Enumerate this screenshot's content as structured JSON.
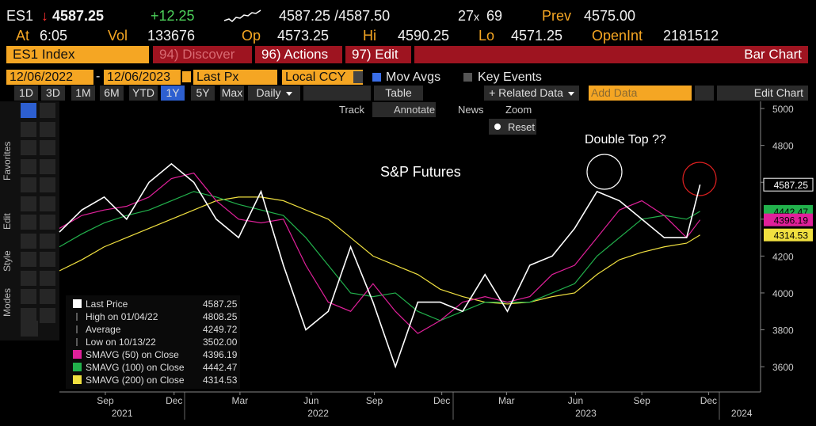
{
  "quote": {
    "ticker": "ES1",
    "arrow": "↓",
    "last": "4587.25",
    "change": "+12.25",
    "bid_ask": "4587.25 /4587.50",
    "bid_size": "27",
    "size_sep": "x",
    "ask_size": "69",
    "prev_label": "Prev",
    "prev": "4575.00",
    "time_label": "At",
    "time": "6:05",
    "vol_label": "Vol",
    "vol": "133676",
    "open_label": "Op",
    "open": "4573.25",
    "high_label": "Hi",
    "high": "4590.25",
    "low_label": "Lo",
    "low": "4571.25",
    "oi_label": "OpenInt",
    "oi": "2181512"
  },
  "menu": [
    "ES1 Index",
    "94) Discover",
    "96) Actions",
    "97) Edit",
    "Bar Chart"
  ],
  "controls": {
    "start": "12/06/2022",
    "dash": "-",
    "end": "12/06/2023",
    "field": "Last Px",
    "currency": "Local CCY",
    "mov_avgs": "Mov Avgs",
    "key_events": "Key Events"
  },
  "periods": [
    "1D",
    "3D",
    "1M",
    "6M",
    "YTD",
    "1Y",
    "5Y",
    "Max"
  ],
  "frequency": "Daily",
  "table": "Table",
  "related": "+ Related Data",
  "add_data": "Add Data",
  "edit_chart": "Edit Chart",
  "tools": [
    "Track",
    "Annotate",
    "News",
    "Zoom"
  ],
  "reset": "Reset",
  "side_tabs": [
    "Favorites",
    "Edit",
    "Style",
    "Modes"
  ],
  "chart_data": {
    "type": "line",
    "annotations": [
      "S&P Futures",
      "Double Top ??"
    ],
    "x": [
      0,
      1,
      2,
      3,
      4,
      5,
      6,
      7,
      8,
      9,
      10,
      11,
      12,
      13,
      14,
      15,
      16,
      17,
      18,
      19,
      20,
      21,
      22,
      23,
      24,
      25,
      26,
      27,
      28,
      28.6
    ],
    "xlim": [
      0,
      31.3
    ],
    "xticks": [
      {
        "value": 2.05,
        "label": "Sep"
      },
      {
        "value": 5.12,
        "label": "Dec"
      },
      {
        "value": 8.06,
        "label": "Mar"
      },
      {
        "value": 11.24,
        "label": "Jun"
      },
      {
        "value": 14.06,
        "label": "Sep"
      },
      {
        "value": 17.07,
        "label": "Dec"
      },
      {
        "value": 19.96,
        "label": "Mar"
      },
      {
        "value": 23.04,
        "label": "Jun"
      },
      {
        "value": 26.0,
        "label": "Sep"
      },
      {
        "value": 28.98,
        "label": "Dec"
      }
    ],
    "year_ticks": [
      {
        "value": 2.8,
        "label": "2021"
      },
      {
        "value": 11.55,
        "label": "2022"
      },
      {
        "value": 23.5,
        "label": "2023"
      },
      {
        "value": 30.46,
        "label": "2024"
      }
    ],
    "ylim": [
      3463,
      5039
    ],
    "yticks": [
      3600,
      3800,
      4000,
      4200,
      4400,
      4600,
      4800,
      5000
    ],
    "series": [
      {
        "name": "Last Price",
        "color": "#ffffff",
        "values": [
          4330,
          4450,
          4520,
          4400,
          4600,
          4700,
          4600,
          4400,
          4300,
          4550,
          4150,
          3800,
          3900,
          4250,
          3950,
          3600,
          3950,
          3950,
          3900,
          4100,
          3900,
          4150,
          4200,
          4350,
          4550,
          4500,
          4400,
          4300,
          4300,
          4587.25
        ]
      },
      {
        "name": "SMAVG (50)  on Close",
        "color": "#e0209a",
        "values": [
          4350,
          4420,
          4450,
          4470,
          4520,
          4620,
          4650,
          4500,
          4400,
          4380,
          4400,
          4150,
          3950,
          3900,
          4050,
          3900,
          3780,
          3850,
          3950,
          3980,
          3950,
          3980,
          4100,
          4150,
          4300,
          4450,
          4500,
          4420,
          4300,
          4396.19
        ]
      },
      {
        "name": "SMAVG (100)  on Close",
        "color": "#22b14c",
        "values": [
          4250,
          4320,
          4380,
          4420,
          4450,
          4500,
          4550,
          4520,
          4480,
          4450,
          4420,
          4300,
          4150,
          4000,
          3980,
          4000,
          3900,
          3850,
          3900,
          3950,
          3950,
          3950,
          4000,
          4050,
          4200,
          4300,
          4400,
          4420,
          4400,
          4442.47
        ]
      },
      {
        "name": "SMAVG (200)  on Close",
        "color": "#f0e040",
        "values": [
          4120,
          4180,
          4250,
          4300,
          4350,
          4400,
          4450,
          4500,
          4520,
          4520,
          4500,
          4450,
          4400,
          4300,
          4200,
          4150,
          4100,
          4020,
          3980,
          3950,
          3940,
          3950,
          3980,
          4000,
          4100,
          4180,
          4220,
          4250,
          4270,
          4314.53
        ]
      }
    ],
    "stats": [
      {
        "label": "High on 01/04/22",
        "value": "4808.25"
      },
      {
        "label": "Average",
        "value": "4249.72"
      },
      {
        "label": "Low on 10/13/22",
        "value": "3502.00"
      }
    ]
  }
}
